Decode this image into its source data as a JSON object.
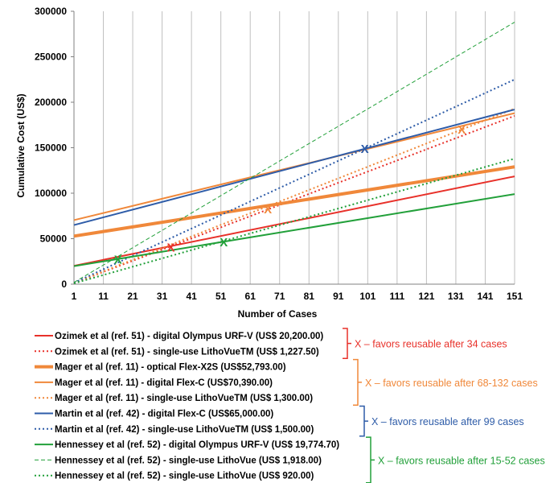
{
  "chart_data": {
    "type": "line",
    "xlabel": "Number of Cases",
    "ylabel": "Cumulative  Cost  (US$)",
    "xlim": [
      1,
      151
    ],
    "ylim": [
      0,
      300000
    ],
    "x_ticks": [
      1,
      11,
      21,
      31,
      41,
      51,
      61,
      71,
      81,
      91,
      101,
      111,
      121,
      131,
      141,
      151
    ],
    "y_ticks": [
      0,
      50000,
      100000,
      150000,
      200000,
      250000,
      300000
    ],
    "grid": "vertical",
    "legend_position": "bottom",
    "series": [
      {
        "name": "Ozimek et al (ref. 51) - digital Olympus URF-V (US$ 20,200.00)",
        "color": "#e8312a",
        "style": "solid",
        "width": 2,
        "x": [
          1,
          151
        ],
        "y": [
          20200,
          118500
        ]
      },
      {
        "name": "Ozimek et al (ref. 51) - single-use LithoVueTM (US$ 1,227.50)",
        "color": "#e8312a",
        "style": "dotted",
        "width": 2,
        "x": [
          1,
          151
        ],
        "y": [
          1228,
          185000
        ]
      },
      {
        "name": "Mager et al (ref. 11) - optical Flex-X2S (US$52,793.00)",
        "color": "#f0883a",
        "style": "solid",
        "width": 4,
        "x": [
          1,
          151
        ],
        "y": [
          52800,
          129000
        ]
      },
      {
        "name": "Mager et al (ref. 11) - digital Flex-C (US$70,390.00)",
        "color": "#f0883a",
        "style": "solid",
        "width": 2,
        "x": [
          1,
          151
        ],
        "y": [
          70390,
          188000
        ]
      },
      {
        "name": "Mager et al (ref. 11) - single-use LithoVueTM (US$ 1,300.00)",
        "color": "#f0883a",
        "style": "dotted",
        "width": 2,
        "x": [
          1,
          151
        ],
        "y": [
          1300,
          193000
        ]
      },
      {
        "name": "Martin et al (ref. 42) - digital Flex-C (US$65,000.00)",
        "color": "#2e5ca8",
        "style": "solid",
        "width": 2,
        "x": [
          1,
          151
        ],
        "y": [
          65000,
          192000
        ]
      },
      {
        "name": "Martin et al (ref. 42) - single-use LithoVueTM (US$ 1,500.00)",
        "color": "#2e5ca8",
        "style": "dotted",
        "width": 2,
        "x": [
          1,
          151
        ],
        "y": [
          1500,
          225000
        ]
      },
      {
        "name": "Hennessey et al (ref. 52) - digital Olympus URF-V (US$ 19,774.70)",
        "color": "#22a03a",
        "style": "solid",
        "width": 2,
        "x": [
          1,
          151
        ],
        "y": [
          19775,
          99000
        ]
      },
      {
        "name": "Hennessey et al (ref. 52) - single-use LithoVue (US$ 1,918.00)",
        "color": "#22a03a",
        "style": "dashed",
        "width": 1,
        "x": [
          1,
          151
        ],
        "y": [
          1918,
          288000
        ]
      },
      {
        "name": "Hennessey et al (ref. 52) - single-use LithoVue (US$ 920.00)",
        "color": "#22a03a",
        "style": "dotted",
        "width": 2,
        "x": [
          1,
          151
        ],
        "y": [
          920,
          138000
        ]
      }
    ],
    "markers": [
      {
        "label": "X",
        "x": 16,
        "y": 28000,
        "color": "#22a03a"
      },
      {
        "label": "X",
        "x": 34,
        "y": 41000,
        "color": "#e8312a"
      },
      {
        "label": "X",
        "x": 52,
        "y": 47000,
        "color": "#22a03a"
      },
      {
        "label": "X",
        "x": 67,
        "y": 83000,
        "color": "#f0883a"
      },
      {
        "label": "X",
        "x": 100,
        "y": 149500,
        "color": "#2e5ca8"
      },
      {
        "label": "X",
        "x": 133,
        "y": 171000,
        "color": "#f0883a"
      }
    ],
    "annotations": [
      {
        "text": "X – favors reusable after 34 cases",
        "color": "#e8312a",
        "group_rows": [
          0,
          1
        ]
      },
      {
        "text": "X – favors reusable after 68-132 cases",
        "color": "#f0883a",
        "group_rows": [
          2,
          4
        ]
      },
      {
        "text": "X – favors reusable after 99 cases",
        "color": "#2e5ca8",
        "group_rows": [
          5,
          6
        ]
      },
      {
        "text": "X – favors reusable after 15-52 cases",
        "color": "#22a03a",
        "group_rows": [
          7,
          9
        ]
      }
    ]
  }
}
